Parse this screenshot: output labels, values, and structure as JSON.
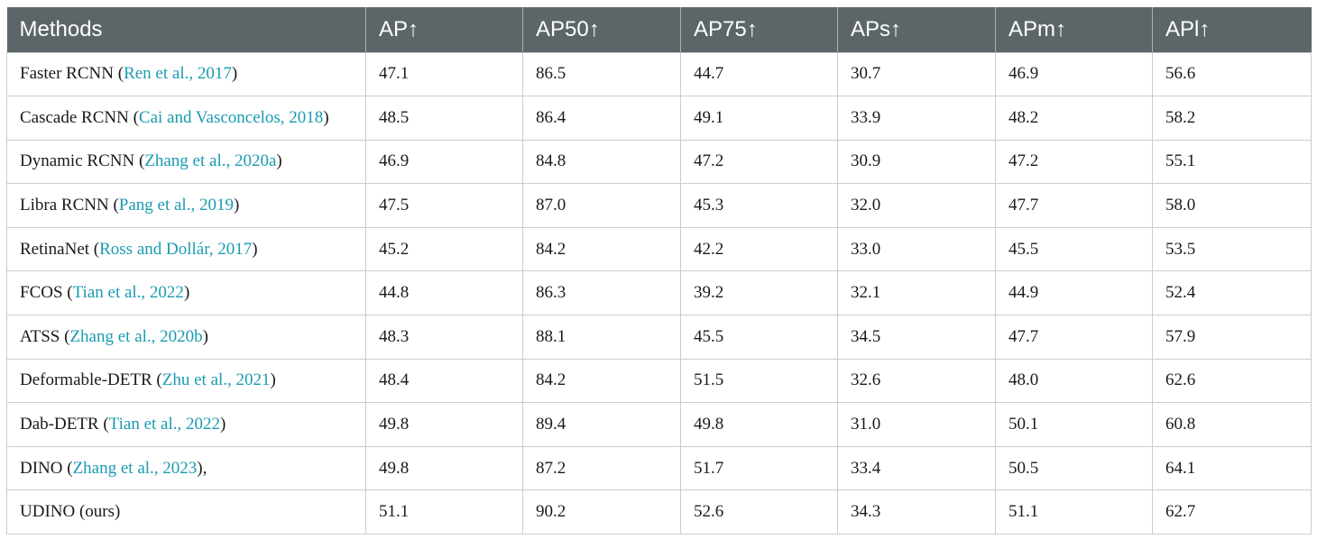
{
  "columns": [
    "Methods",
    "AP↑",
    "AP50↑",
    "AP75↑",
    "APs↑",
    "APm↑",
    "APl↑"
  ],
  "rows": [
    {
      "method": "Faster RCNN",
      "cite": "Ren et al., 2017",
      "suffix": ")",
      "values": [
        "47.1",
        "86.5",
        "44.7",
        "30.7",
        "46.9",
        "56.6"
      ]
    },
    {
      "method": "Cascade RCNN",
      "cite": "Cai and Vasconcelos, 2018",
      "suffix": ")",
      "values": [
        "48.5",
        "86.4",
        "49.1",
        "33.9",
        "48.2",
        "58.2"
      ]
    },
    {
      "method": "Dynamic RCNN",
      "cite": "Zhang et al., 2020a",
      "suffix": ")",
      "values": [
        "46.9",
        "84.8",
        "47.2",
        "30.9",
        "47.2",
        "55.1"
      ]
    },
    {
      "method": "Libra RCNN",
      "cite": "Pang et al., 2019",
      "suffix": ")",
      "values": [
        "47.5",
        "87.0",
        "45.3",
        "32.0",
        "47.7",
        "58.0"
      ]
    },
    {
      "method": "RetinaNet",
      "cite": "Ross and Dollár, 2017",
      "suffix": ")",
      "values": [
        "45.2",
        "84.2",
        "42.2",
        "33.0",
        "45.5",
        "53.5"
      ]
    },
    {
      "method": "FCOS",
      "cite": "Tian et al., 2022",
      "suffix": ")",
      "values": [
        "44.8",
        "86.3",
        "39.2",
        "32.1",
        "44.9",
        "52.4"
      ]
    },
    {
      "method": "ATSS",
      "cite": "Zhang et al., 2020b",
      "suffix": ")",
      "values": [
        "48.3",
        "88.1",
        "45.5",
        "34.5",
        "47.7",
        "57.9"
      ]
    },
    {
      "method": "Deformable-DETR",
      "cite": "Zhu et al., 2021",
      "suffix": ")",
      "values": [
        "48.4",
        "84.2",
        "51.5",
        "32.6",
        "48.0",
        "62.6"
      ]
    },
    {
      "method": "Dab-DETR",
      "cite": "Tian et al., 2022",
      "suffix": ")",
      "values": [
        "49.8",
        "89.4",
        "49.8",
        "31.0",
        "50.1",
        "60.8"
      ]
    },
    {
      "method": "DINO",
      "cite": "Zhang et al., 2023",
      "suffix": "),",
      "values": [
        "49.8",
        "87.2",
        "51.7",
        "33.4",
        "50.5",
        "64.1"
      ]
    },
    {
      "method": "UDINO (ours)",
      "cite": "",
      "suffix": "",
      "values": [
        "51.1",
        "90.2",
        "52.6",
        "34.3",
        "51.1",
        "62.7"
      ]
    }
  ],
  "colors": {
    "header_bg": "#5c6668",
    "header_text": "#ffffff",
    "citation": "#1a9bb0",
    "grid": "#c9cdcf"
  }
}
